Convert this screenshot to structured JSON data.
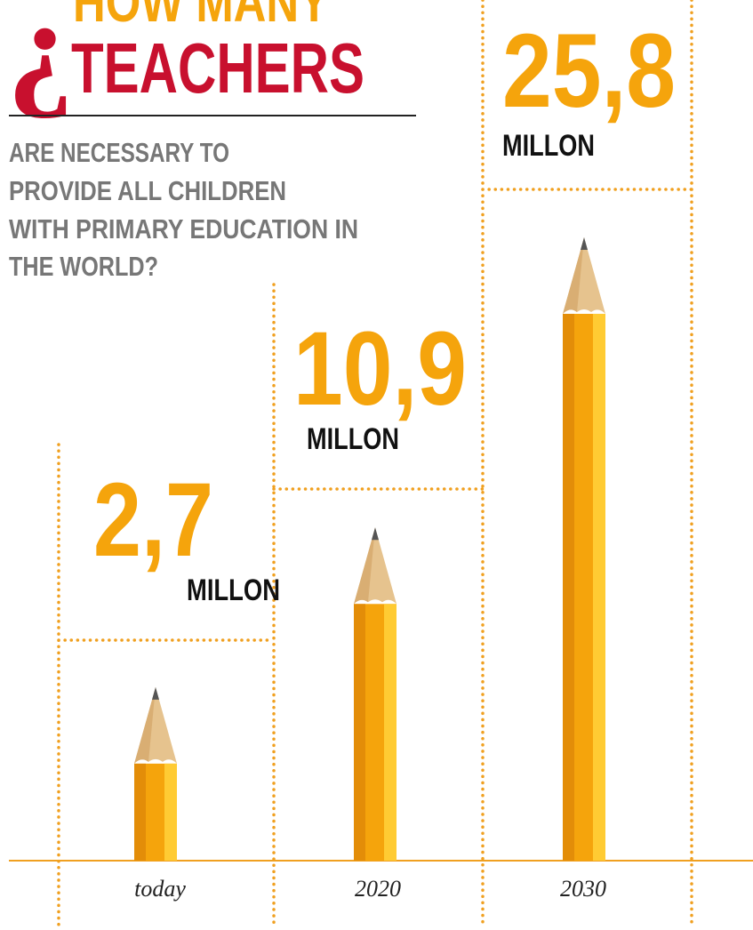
{
  "chart_data": {
    "type": "pencil-bar",
    "title_mark": "¿",
    "title_lines": [
      "HOW MANY",
      "TEACHERS"
    ],
    "subtitle_lines": [
      "ARE NECESSARY TO",
      "PROVIDE ALL CHILDREN",
      "WITH PRIMARY EDUCATION IN",
      "THE WORLD?"
    ],
    "categories": [
      "today",
      "2020",
      "2030"
    ],
    "values": [
      2.7,
      10.9,
      25.8
    ],
    "value_labels": [
      "2,7",
      "10,9",
      "25,8"
    ],
    "unit": "MILLON",
    "color": "#f5a40c"
  }
}
